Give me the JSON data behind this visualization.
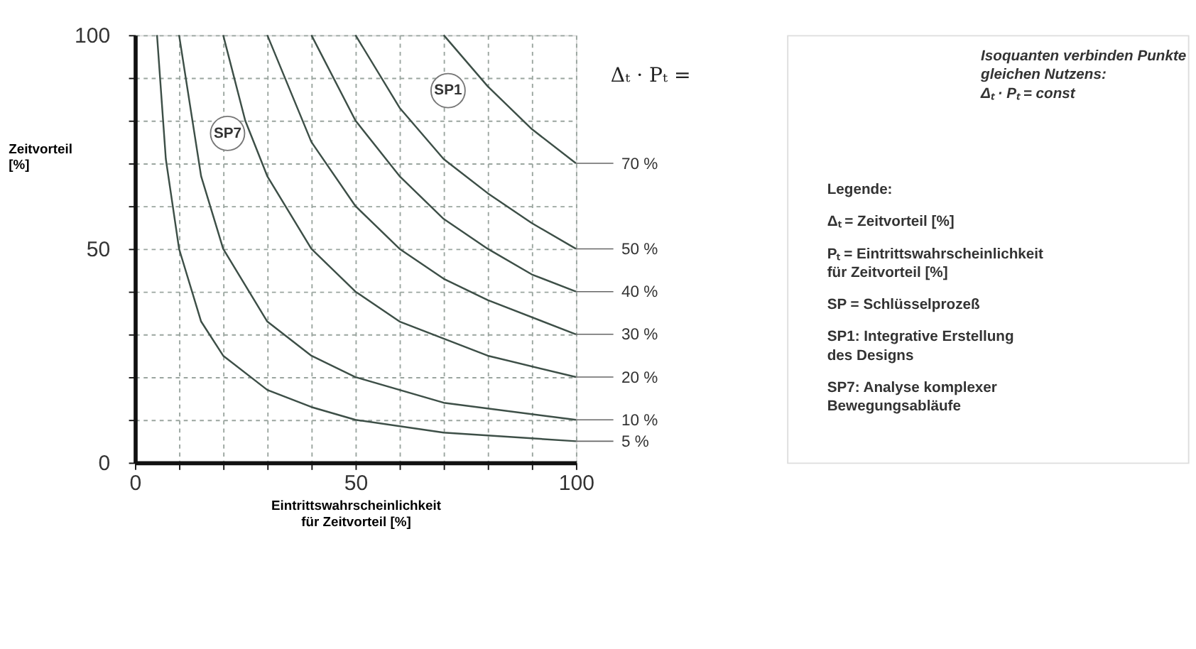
{
  "chart_data": {
    "type": "line",
    "xlabel": "Eintrittswahrscheinlichkeit\nfür Zeitvorteil [%]",
    "ylabel": "Zeitvorteil\n[%]",
    "legend_title": "Δₜ · Pₜ =",
    "legend": "right",
    "xlim": [
      0,
      100
    ],
    "ylim": [
      0,
      100
    ],
    "xticks": [
      0,
      {
        "value": 10,
        "label": null
      },
      {
        "value": 20,
        "label": null
      },
      {
        "value": 30,
        "label": null
      },
      {
        "value": 40,
        "label": null
      },
      50,
      {
        "value": 60,
        "label": null
      },
      {
        "value": 70,
        "label": null
      },
      {
        "value": 80,
        "label": null
      },
      {
        "value": 90,
        "label": null
      },
      100
    ],
    "yticks": [
      0,
      {
        "value": 10,
        "label": null
      },
      {
        "value": 20,
        "label": null
      },
      {
        "value": 30,
        "label": null
      },
      {
        "value": 40,
        "label": null
      },
      50,
      {
        "value": 60,
        "label": null
      },
      {
        "value": 70,
        "label": null
      },
      {
        "value": 80,
        "label": null
      },
      {
        "value": 90,
        "label": null
      },
      100
    ],
    "grid": true,
    "marker": "none",
    "line_style": "solid",
    "series": [
      {
        "name": "5 %",
        "color": "#3d4f47",
        "x": [
          5,
          7,
          10,
          15,
          20,
          30,
          40,
          50,
          70,
          100
        ],
        "values": [
          100,
          71,
          50,
          33,
          25,
          17,
          13,
          10,
          7,
          5
        ]
      },
      {
        "name": "10 %",
        "color": "#3d4f47",
        "x": [
          10,
          15,
          20,
          30,
          40,
          50,
          70,
          100
        ],
        "values": [
          100,
          67,
          50,
          33,
          25,
          20,
          14,
          10
        ]
      },
      {
        "name": "20 %",
        "color": "#3d4f47",
        "x": [
          20,
          25,
          30,
          40,
          50,
          60,
          70,
          80,
          100
        ],
        "values": [
          100,
          80,
          67,
          50,
          40,
          33,
          29,
          25,
          20
        ]
      },
      {
        "name": "30 %",
        "color": "#3d4f47",
        "x": [
          30,
          40,
          50,
          60,
          70,
          80,
          100
        ],
        "values": [
          100,
          75,
          60,
          50,
          43,
          38,
          30
        ]
      },
      {
        "name": "40 %",
        "color": "#3d4f47",
        "x": [
          40,
          50,
          60,
          70,
          80,
          90,
          100
        ],
        "values": [
          100,
          80,
          67,
          57,
          50,
          44,
          40
        ]
      },
      {
        "name": "50 %",
        "color": "#3d4f47",
        "x": [
          50,
          60,
          70,
          80,
          90,
          100
        ],
        "values": [
          100,
          83,
          71,
          63,
          56,
          50
        ]
      },
      {
        "name": "70 %",
        "color": "#3d4f47",
        "x": [
          70,
          80,
          90,
          100
        ],
        "values": [
          100,
          88,
          78,
          70
        ]
      },
      {
        "type": "scatter",
        "color": "#ffffff",
        "marker": "circle",
        "x": [
          71,
          21
        ],
        "values": [
          87,
          77
        ]
      }
    ],
    "annotations": [
      {
        "text": "SP1",
        "x": 71,
        "y": 87
      },
      {
        "text": "SP7",
        "x": 21,
        "y": 77
      },
      "Isoquanten verbinden Punkte\ngleichen Nutzens:\nΔₜ · Pₜ = const",
      "Legende:",
      "Δₜ  = Zeitvorteil [%]",
      "Pₜ  = Eintrittswahrscheinlichkeit\n        für Zeitvorteil [%]",
      "SP  = Schlüsselprozeß",
      "SP1:  Integrative Erstellung\n          des Designs",
      "SP7:  Analyse komplexer\n          Bewegungsabläufe"
    ]
  }
}
